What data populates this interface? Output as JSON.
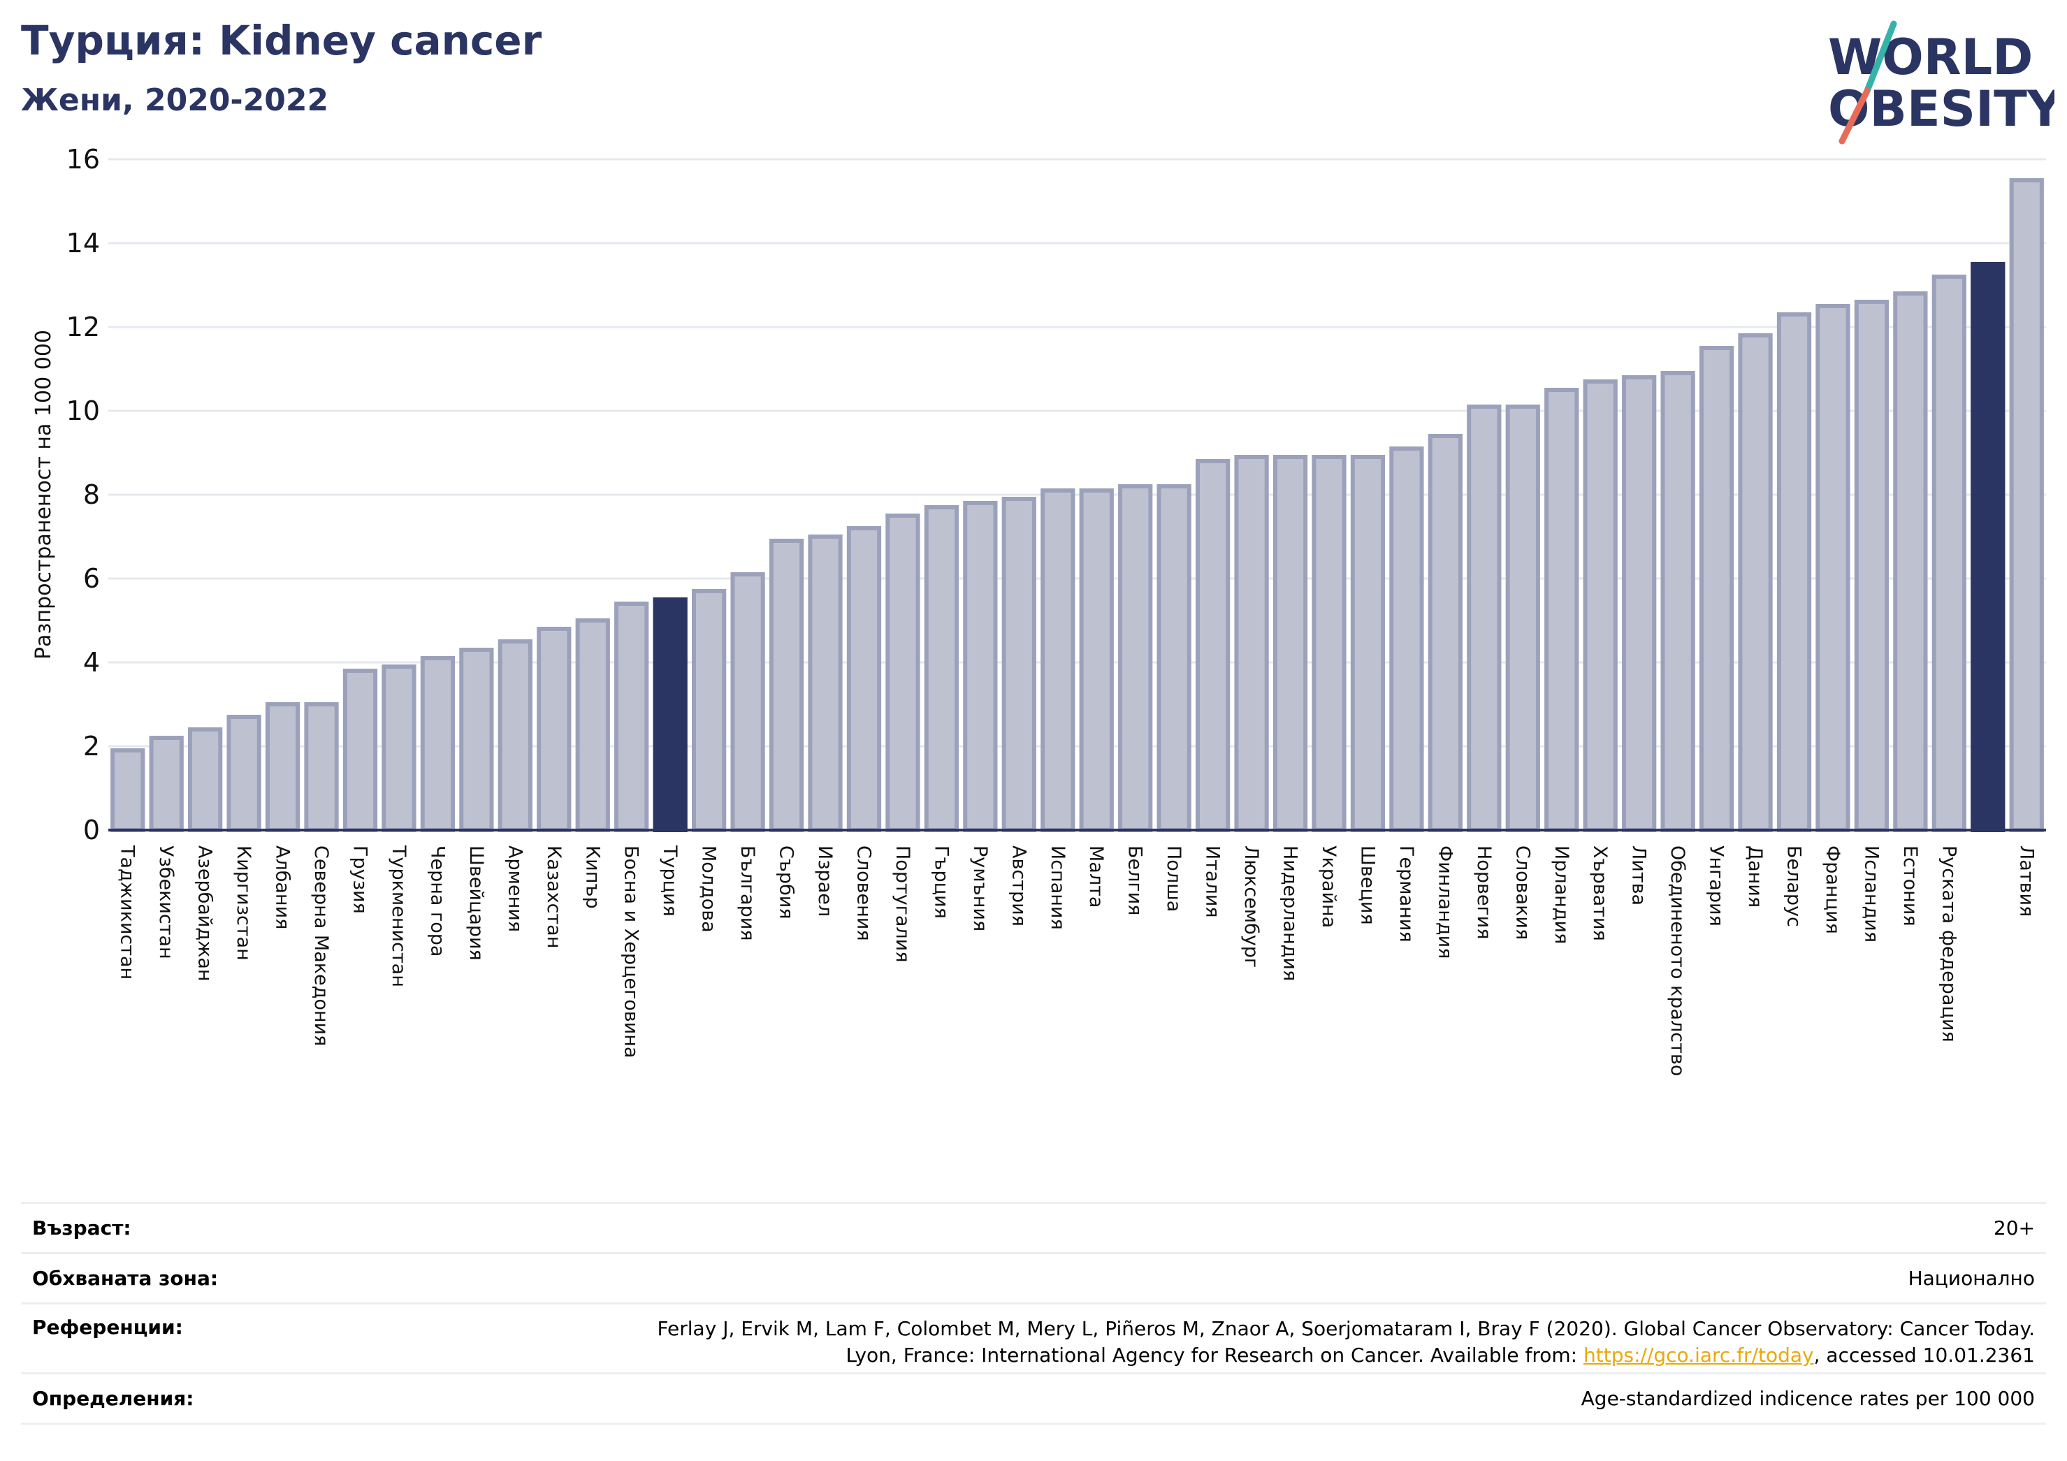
{
  "header": {
    "title": "Турция: Kidney cancer",
    "subtitle": "Жени, 2020-2022"
  },
  "logo": {
    "line1": "WORLD",
    "line2": "OBESITY",
    "colors": {
      "text": "#2b3563",
      "slash_top": "#35b3a9",
      "slash_bottom": "#e86b57"
    }
  },
  "colors": {
    "highlight": "#2b3563",
    "bar_fill": "#bec2d0",
    "bar_stroke": "#9ca1bb",
    "grid": "#e6e8ee",
    "axis": "#2b3563"
  },
  "chart_data": {
    "type": "bar",
    "title": "Турция: Kidney cancer",
    "subtitle": "Жени, 2020-2022",
    "xlabel": "",
    "ylabel": "Разпространеност  на 100 000",
    "ylim": [
      0,
      16
    ],
    "yticks": [
      0,
      2,
      4,
      6,
      8,
      10,
      12,
      14,
      16
    ],
    "grid": true,
    "categories": [
      "Таджикистан",
      "Узбекистан",
      "Азербайджан",
      "Киргизстан",
      "Албания",
      "Северна Македония",
      "Грузия",
      "Туркменистан",
      "Черна гора",
      "Швейцария",
      "Армения",
      "Казахстан",
      "Кипър",
      "Босна и Херцеговина",
      "Турция",
      "Молдова",
      "България",
      "Сърбия",
      "Израел",
      "Словения",
      "Португалия",
      "Гърция",
      "Румъния",
      "Австрия",
      "Испания",
      "Малта",
      "Белгия",
      "Полша",
      "Италия",
      "Люксембург",
      "Нидерландия",
      "Украйна",
      "Швеция",
      "Германия",
      "Финландия",
      "Норвегия",
      "Словакия",
      "Ирландия",
      "Хърватия",
      "Литва",
      "Обединеното кралство",
      "Унгария",
      "Дания",
      "Беларус",
      "Франция",
      "Исландия",
      "Естония",
      "Руската федерация",
      "",
      "Латвия"
    ],
    "values": [
      1.9,
      2.2,
      2.4,
      2.7,
      3.0,
      3.0,
      3.8,
      3.9,
      4.1,
      4.3,
      4.5,
      4.8,
      5.0,
      5.4,
      5.5,
      5.7,
      6.1,
      6.9,
      7.0,
      7.2,
      7.5,
      7.7,
      7.8,
      7.9,
      8.1,
      8.1,
      8.2,
      8.2,
      8.8,
      8.9,
      8.9,
      8.9,
      8.9,
      9.1,
      9.4,
      10.1,
      10.1,
      10.5,
      10.7,
      10.8,
      10.9,
      11.5,
      11.8,
      12.3,
      12.5,
      12.6,
      12.8,
      13.2,
      13.5,
      15.5
    ],
    "highlighted": [
      14,
      48
    ]
  },
  "info": {
    "age_label": "Възраст:",
    "age_value": "20+",
    "area_label": "Обхваната зона:",
    "area_value": "Национално",
    "refs_label": "Референции:",
    "refs_line1": "Ferlay J, Ervik M, Lam F, Colombet M, Mery L, Piñeros M, Znaor A, Soerjomataram I, Bray F (2020). Global Cancer Observatory: Cancer Today.",
    "refs_line2_pre": "Lyon, France: International Agency for Research on Cancer. Available from: ",
    "refs_link": "https://gco.iarc.fr/today",
    "refs_line2_post": ", accessed 10.01.2361",
    "def_label": "Определения:",
    "def_value": "Age-standardized indicence rates per 100 000"
  }
}
